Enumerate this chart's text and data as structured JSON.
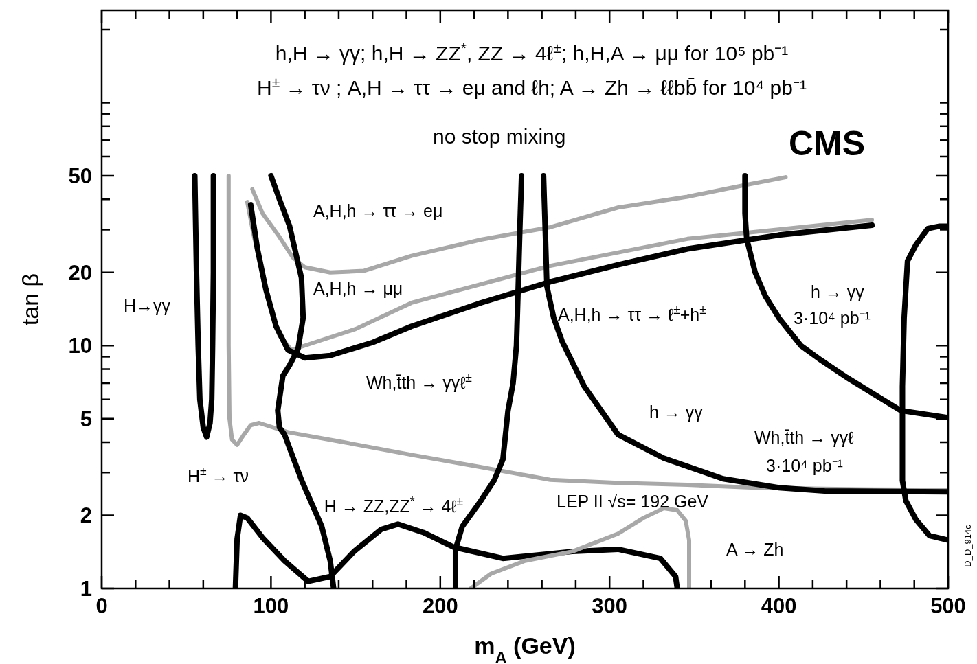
{
  "chart_data": {
    "type": "line",
    "title": "h,H → γγ;  h,H → ZZ$^{*}$, ZZ → 4ℓ$^{±}$; h,H,A → μμ  for 10⁵ pb⁻¹",
    "subtitle": "H$^{±}$ → τν ; A,H → ττ → eμ and ℓh; A → Zh → ℓℓbb̄  for 10⁴ pb⁻¹",
    "xlabel": "m$_{A}$  (GeV)",
    "ylabel": "tan β",
    "xlim": [
      0,
      500
    ],
    "ylim": [
      1,
      240
    ],
    "log": "y",
    "grid": false,
    "marker": "none",
    "line_style": "solid",
    "xticks": [
      0,
      {
        "value": 20,
        "label": null
      },
      {
        "value": 40,
        "label": null
      },
      {
        "value": 60,
        "label": null
      },
      {
        "value": 80,
        "label": null
      },
      100,
      {
        "value": 120,
        "label": null
      },
      {
        "value": 140,
        "label": null
      },
      {
        "value": 160,
        "label": null
      },
      {
        "value": 180,
        "label": null
      },
      200,
      {
        "value": 220,
        "label": null
      },
      {
        "value": 240,
        "label": null
      },
      {
        "value": 260,
        "label": null
      },
      {
        "value": 280,
        "label": null
      },
      300,
      {
        "value": 320,
        "label": null
      },
      {
        "value": 340,
        "label": null
      },
      {
        "value": 360,
        "label": null
      },
      {
        "value": 380,
        "label": null
      },
      400,
      {
        "value": 420,
        "label": null
      },
      {
        "value": 440,
        "label": null
      },
      {
        "value": 460,
        "label": null
      },
      {
        "value": 480,
        "label": null
      },
      500
    ],
    "yticks": [
      1,
      2,
      {
        "value": 3,
        "label": null
      },
      {
        "value": 4,
        "label": null
      },
      5,
      {
        "value": 6,
        "label": null
      },
      {
        "value": 7,
        "label": null
      },
      {
        "value": 8,
        "label": null
      },
      {
        "value": 9,
        "label": null
      },
      10,
      20,
      {
        "value": 30,
        "label": null
      },
      {
        "value": 40,
        "label": null
      },
      50,
      {
        "value": 60,
        "label": null
      },
      {
        "value": 70,
        "label": null
      },
      {
        "value": 80,
        "label": null
      },
      {
        "value": 90,
        "label": null
      },
      {
        "value": 100,
        "label": null
      },
      {
        "value": 200,
        "label": null
      }
    ],
    "series": [
      {
        "color": "#000000",
        "x": [
          55,
          56,
          57,
          58,
          60,
          62,
          64,
          65,
          65.5,
          66,
          66
        ],
        "values": [
          50,
          20,
          10,
          6,
          4.6,
          4.2,
          4.8,
          6,
          10,
          20,
          50
        ]
      },
      {
        "color": "#a8a8a8",
        "x": [
          75,
          75,
          75,
          75.5,
          77,
          80,
          84,
          88,
          93,
          110,
          143,
          183,
          224,
          265,
          305,
          346,
          386,
          447,
          500
        ],
        "values": [
          50,
          20,
          10,
          5,
          4.1,
          3.9,
          4.3,
          4.7,
          4.8,
          4.4,
          4.0,
          3.55,
          3.16,
          2.8,
          2.72,
          2.67,
          2.6,
          2.56,
          2.55
        ]
      },
      {
        "color": "#a8a8a8",
        "x": [
          89,
          95,
          105,
          113,
          120,
          135,
          155,
          183,
          224,
          265,
          305,
          346,
          378,
          404
        ],
        "values": [
          44,
          35,
          28,
          23,
          21,
          20,
          20.3,
          23.4,
          27.3,
          30.7,
          37,
          41,
          45.5,
          49.3
        ]
      },
      {
        "color": "#a8a8a8",
        "x": [
          86,
          90,
          95,
          100,
          105,
          112,
          120,
          150,
          183,
          265,
          346,
          455
        ],
        "values": [
          39,
          28,
          20,
          14,
          11,
          9.6,
          10,
          11.7,
          15,
          21.3,
          27.5,
          32.9
        ]
      },
      {
        "color": "#000000",
        "x": [
          88,
          92,
          97,
          103,
          110,
          120,
          135,
          160,
          183,
          224,
          265,
          305,
          346,
          400,
          455
        ],
        "values": [
          38,
          25,
          17,
          12,
          9.6,
          8.9,
          9.1,
          10.3,
          12,
          15,
          18.3,
          21.5,
          25,
          28.5,
          31.3
        ]
      },
      {
        "color": "#000000",
        "x": [
          100,
          105,
          111,
          118,
          119,
          116,
          111,
          107,
          104,
          105,
          108,
          118,
          130,
          135,
          137
        ],
        "values": [
          50,
          40,
          31,
          19,
          13,
          9.7,
          8.3,
          7.5,
          5.4,
          4.6,
          4.3,
          2.8,
          1.8,
          1.3,
          1
        ]
      },
      {
        "color": "#000000",
        "x": [
          248,
          247,
          246,
          245,
          243,
          240,
          237,
          232,
          224,
          213,
          209,
          209
        ],
        "values": [
          50,
          30,
          17,
          10,
          7,
          5.4,
          3.4,
          2.8,
          2.3,
          1.8,
          1.45,
          1
        ]
      },
      {
        "color": "#000000",
        "x": [
          261,
          262,
          263,
          267,
          272,
          285,
          305,
          332,
          367,
          400,
          427,
          500
        ],
        "values": [
          50,
          30,
          17.5,
          13,
          10.4,
          6.8,
          4.3,
          3.44,
          2.83,
          2.6,
          2.52,
          2.5
        ]
      },
      {
        "color": "#000000",
        "x": [
          380,
          380,
          381,
          386,
          392,
          400,
          413,
          425,
          440,
          472,
          500
        ],
        "values": [
          50,
          35,
          27.5,
          20,
          16,
          13,
          10,
          8.7,
          7.4,
          5.4,
          5.05
        ]
      },
      {
        "color": "#000000",
        "x": [
          500,
          495,
          488,
          481,
          476,
          474,
          473,
          473,
          473,
          475,
          481,
          489,
          500
        ],
        "values": [
          31,
          31,
          30.3,
          26,
          22.3,
          13,
          6.8,
          5.3,
          2.78,
          2.3,
          1.92,
          1.65,
          1.58
        ]
      },
      {
        "color": "#000000",
        "x": [
          79,
          80,
          82,
          86,
          95,
          108,
          122,
          135,
          149,
          165,
          175,
          190,
          208,
          237,
          278,
          305,
          330,
          339,
          340
        ],
        "values": [
          1,
          1.6,
          2.0,
          1.95,
          1.62,
          1.3,
          1.07,
          1.12,
          1.42,
          1.75,
          1.84,
          1.7,
          1.48,
          1.33,
          1.42,
          1.45,
          1.33,
          1.12,
          1
        ]
      },
      {
        "color": "#a8a8a8",
        "x": [
          218,
          230,
          250,
          278,
          305,
          320,
          332,
          340,
          345,
          347,
          347
        ],
        "values": [
          1,
          1.15,
          1.3,
          1.42,
          1.68,
          1.95,
          2.14,
          2.1,
          1.9,
          1.58,
          1
        ]
      }
    ],
    "annotations": [
      "H→γγ",
      "A,H,h → ττ → eμ",
      "A,H,h → μμ",
      "A,H,h → ττ → ℓ$^{±}$+h$^{±}$",
      "h → γγ",
      "3·10⁴ pb⁻¹",
      "Wh,t̄th → γγℓ$^{±}$",
      "h → γγ",
      "Wh,t̄th → γγℓ",
      "3·10⁴ pb⁻¹",
      "H$^{±}$ → τν",
      "H → ZZ,ZZ$^{*}$ → 4ℓ$^{±}$",
      "LEP II  √s= 192 GeV",
      "A → Zh",
      "no stop mixing",
      "CMS",
      "D_D_914c"
    ]
  }
}
